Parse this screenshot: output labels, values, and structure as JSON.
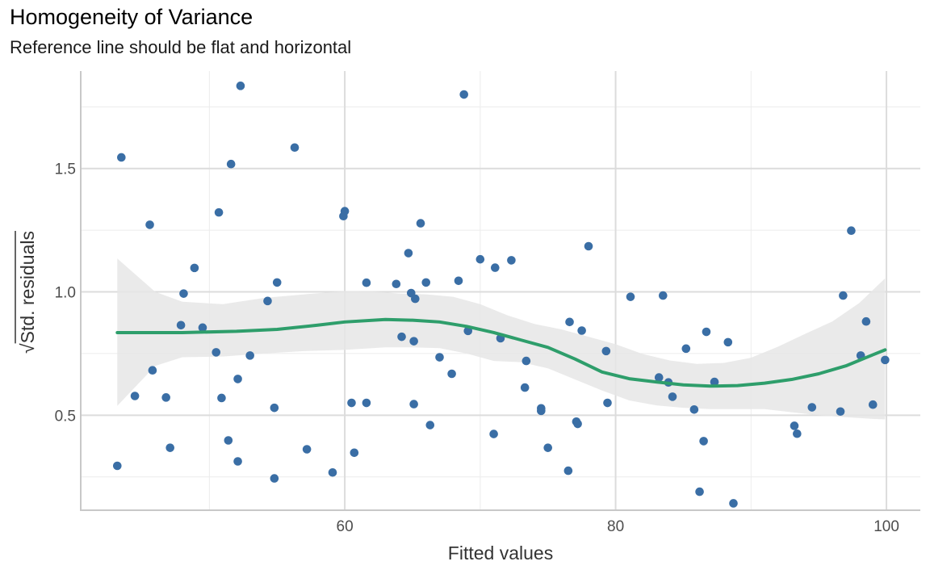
{
  "chart_data": {
    "type": "scatter",
    "title": "Homogeneity of Variance",
    "subtitle": "Reference line should be flat and horizontal",
    "xlabel": "Fitted values",
    "ylabel": "Std. residuals",
    "ylabel_prefix": "√",
    "xlim": [
      40.5,
      102.5
    ],
    "ylim": [
      0.115,
      1.895
    ],
    "x_major_ticks": [
      60,
      80,
      100
    ],
    "x_minor_ticks": [
      50,
      70,
      90
    ],
    "y_major_ticks": [
      0.5,
      1.0,
      1.5
    ],
    "y_major_tick_labels": [
      "0.5",
      "1.0",
      "1.5"
    ],
    "y_minor_ticks": [
      0.25,
      0.75,
      1.25,
      1.75
    ],
    "grid": true,
    "colors": {
      "points": "#3a6ea5",
      "smooth": "#2e9e6b",
      "band": "#e6e6e6"
    },
    "points": [
      [
        43.2,
        0.295
      ],
      [
        43.5,
        1.545
      ],
      [
        44.5,
        0.578
      ],
      [
        45.6,
        1.272
      ],
      [
        45.8,
        0.682
      ],
      [
        46.8,
        0.572
      ],
      [
        47.1,
        0.368
      ],
      [
        47.9,
        0.865
      ],
      [
        48.1,
        0.993
      ],
      [
        48.9,
        1.097
      ],
      [
        49.5,
        0.855
      ],
      [
        50.5,
        0.755
      ],
      [
        50.7,
        1.322
      ],
      [
        50.9,
        0.57
      ],
      [
        51.4,
        0.398
      ],
      [
        51.6,
        1.518
      ],
      [
        52.1,
        0.647
      ],
      [
        52.1,
        0.313
      ],
      [
        52.3,
        1.835
      ],
      [
        53.0,
        0.742
      ],
      [
        54.3,
        0.963
      ],
      [
        54.8,
        0.53
      ],
      [
        54.8,
        0.244
      ],
      [
        55.0,
        1.038
      ],
      [
        56.3,
        1.585
      ],
      [
        57.2,
        0.362
      ],
      [
        59.1,
        0.268
      ],
      [
        59.9,
        1.307
      ],
      [
        60.0,
        1.327
      ],
      [
        60.5,
        0.55
      ],
      [
        60.7,
        0.348
      ],
      [
        61.6,
        1.037
      ],
      [
        61.6,
        0.55
      ],
      [
        63.8,
        1.032
      ],
      [
        64.2,
        0.818
      ],
      [
        64.7,
        1.157
      ],
      [
        64.9,
        0.995
      ],
      [
        65.1,
        0.8
      ],
      [
        65.1,
        0.545
      ],
      [
        65.2,
        0.972
      ],
      [
        65.6,
        1.278
      ],
      [
        66.0,
        1.038
      ],
      [
        66.3,
        0.46
      ],
      [
        67.0,
        0.735
      ],
      [
        67.9,
        0.668
      ],
      [
        68.4,
        1.045
      ],
      [
        68.8,
        1.8
      ],
      [
        69.1,
        0.842
      ],
      [
        70.0,
        1.132
      ],
      [
        71.0,
        0.424
      ],
      [
        71.1,
        1.098
      ],
      [
        71.5,
        0.812
      ],
      [
        72.3,
        1.128
      ],
      [
        73.3,
        0.612
      ],
      [
        73.4,
        0.72
      ],
      [
        74.5,
        0.528
      ],
      [
        74.5,
        0.518
      ],
      [
        75.0,
        0.368
      ],
      [
        76.5,
        0.275
      ],
      [
        76.6,
        0.878
      ],
      [
        77.1,
        0.474
      ],
      [
        77.2,
        0.465
      ],
      [
        77.5,
        0.843
      ],
      [
        78.0,
        1.185
      ],
      [
        79.3,
        0.76
      ],
      [
        79.4,
        0.55
      ],
      [
        81.1,
        0.98
      ],
      [
        83.2,
        0.653
      ],
      [
        83.5,
        0.985
      ],
      [
        83.9,
        0.633
      ],
      [
        84.2,
        0.575
      ],
      [
        85.2,
        0.77
      ],
      [
        85.8,
        0.523
      ],
      [
        86.2,
        0.19
      ],
      [
        86.5,
        0.395
      ],
      [
        86.7,
        0.838
      ],
      [
        87.3,
        0.635
      ],
      [
        88.3,
        0.796
      ],
      [
        88.7,
        0.143
      ],
      [
        93.2,
        0.457
      ],
      [
        93.4,
        0.425
      ],
      [
        94.5,
        0.532
      ],
      [
        96.6,
        0.515
      ],
      [
        96.8,
        0.985
      ],
      [
        97.4,
        1.248
      ],
      [
        98.1,
        0.742
      ],
      [
        98.5,
        0.88
      ],
      [
        99.0,
        0.543
      ],
      [
        99.9,
        0.724
      ]
    ],
    "smooth_line": [
      [
        43.2,
        0.835
      ],
      [
        48,
        0.835
      ],
      [
        52,
        0.84
      ],
      [
        55,
        0.848
      ],
      [
        58,
        0.865
      ],
      [
        60,
        0.878
      ],
      [
        63,
        0.888
      ],
      [
        65,
        0.885
      ],
      [
        67,
        0.878
      ],
      [
        69,
        0.86
      ],
      [
        71,
        0.835
      ],
      [
        73,
        0.805
      ],
      [
        75,
        0.775
      ],
      [
        77,
        0.728
      ],
      [
        79,
        0.675
      ],
      [
        81,
        0.648
      ],
      [
        83,
        0.635
      ],
      [
        85,
        0.623
      ],
      [
        87,
        0.618
      ],
      [
        89,
        0.62
      ],
      [
        91,
        0.63
      ],
      [
        93,
        0.645
      ],
      [
        95,
        0.668
      ],
      [
        97,
        0.7
      ],
      [
        99,
        0.745
      ],
      [
        99.9,
        0.765
      ]
    ],
    "smooth_band_upper": [
      [
        43.2,
        1.135
      ],
      [
        46,
        1.0
      ],
      [
        48,
        0.96
      ],
      [
        51,
        0.95
      ],
      [
        54,
        0.975
      ],
      [
        57,
        0.99
      ],
      [
        60,
        1.003
      ],
      [
        62,
        1.002
      ],
      [
        64,
        0.993
      ],
      [
        66,
        0.99
      ],
      [
        68,
        0.98
      ],
      [
        70,
        0.95
      ],
      [
        72,
        0.905
      ],
      [
        74,
        0.87
      ],
      [
        76,
        0.848
      ],
      [
        78,
        0.818
      ],
      [
        80,
        0.788
      ],
      [
        82,
        0.748
      ],
      [
        84,
        0.722
      ],
      [
        86,
        0.708
      ],
      [
        88,
        0.712
      ],
      [
        90,
        0.733
      ],
      [
        92,
        0.778
      ],
      [
        94,
        0.83
      ],
      [
        96,
        0.88
      ],
      [
        98,
        0.955
      ],
      [
        99.9,
        1.055
      ]
    ],
    "smooth_band_lower": [
      [
        43.2,
        0.538
      ],
      [
        46,
        0.7
      ],
      [
        48,
        0.735
      ],
      [
        51,
        0.738
      ],
      [
        54,
        0.75
      ],
      [
        57,
        0.76
      ],
      [
        60,
        0.765
      ],
      [
        63,
        0.775
      ],
      [
        65,
        0.775
      ],
      [
        67,
        0.772
      ],
      [
        69,
        0.75
      ],
      [
        71,
        0.72
      ],
      [
        73,
        0.715
      ],
      [
        75,
        0.69
      ],
      [
        77,
        0.645
      ],
      [
        79,
        0.6
      ],
      [
        81,
        0.56
      ],
      [
        83,
        0.54
      ],
      [
        85,
        0.53
      ],
      [
        87,
        0.525
      ],
      [
        89,
        0.525
      ],
      [
        91,
        0.525
      ],
      [
        93,
        0.512
      ],
      [
        95,
        0.5
      ],
      [
        97,
        0.492
      ],
      [
        99,
        0.485
      ],
      [
        99.9,
        0.483
      ]
    ]
  }
}
